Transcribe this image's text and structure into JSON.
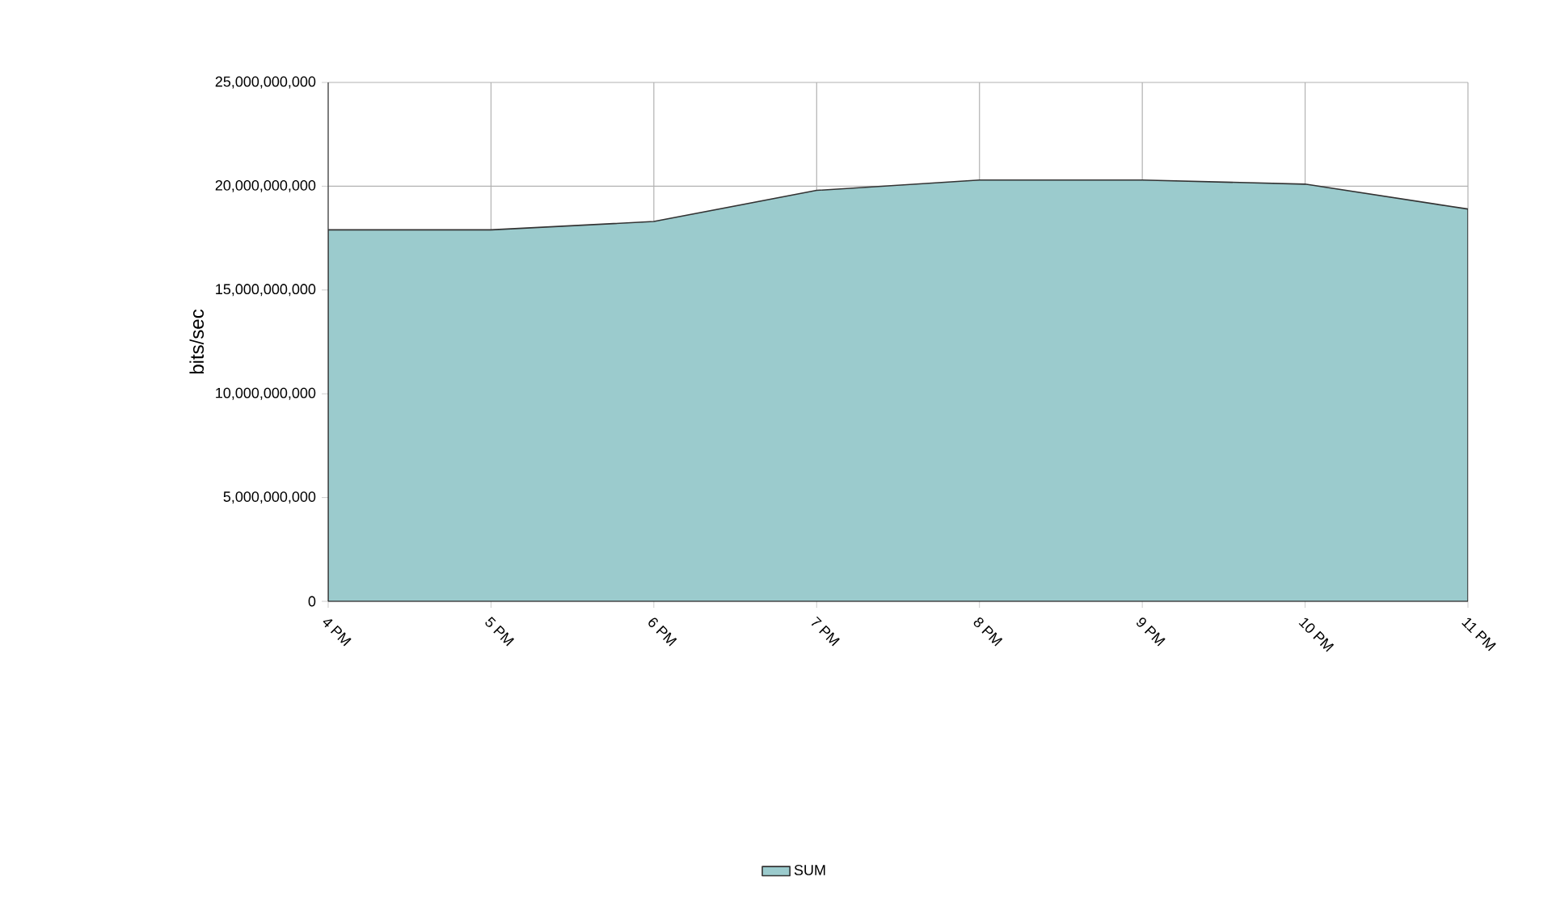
{
  "chart_data": {
    "type": "area",
    "ylabel": "bits/sec",
    "categories": [
      "4 PM",
      "5 PM",
      "6 PM",
      "7 PM",
      "8 PM",
      "9 PM",
      "10 PM",
      "11 PM"
    ],
    "series": [
      {
        "name": "SUM",
        "color": "#9bcbcd",
        "values": [
          17900000000,
          17900000000,
          18300000000,
          19800000000,
          20300000000,
          20300000000,
          20100000000,
          18900000000
        ]
      }
    ],
    "ylim": [
      0,
      25000000000
    ],
    "yticks": [
      {
        "value": 0,
        "label": "0"
      },
      {
        "value": 5000000000,
        "label": "5,000,000,000"
      },
      {
        "value": 10000000000,
        "label": "10,000,000,000"
      },
      {
        "value": 15000000000,
        "label": "15,000,000,000"
      },
      {
        "value": 20000000000,
        "label": "20,000,000,000"
      },
      {
        "value": 25000000000,
        "label": "25,000,000,000"
      }
    ],
    "grid": true,
    "legend": "bottom"
  }
}
